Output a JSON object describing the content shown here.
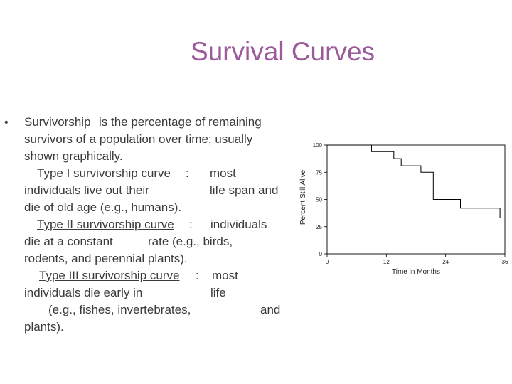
{
  "slide": {
    "title": "Survival Curves",
    "bullet": "•",
    "paragraph": {
      "lines": [
        [
          {
            "t": "Survivorship",
            "u": true,
            "x": 0
          },
          {
            "t": " is the percentage of remaining",
            "u": false,
            "x": 105
          }
        ],
        [
          {
            "t": "survivors of a population over time; usually",
            "u": false,
            "x": 0
          }
        ],
        [
          {
            "t": "shown graphically.",
            "u": false,
            "x": 0
          }
        ],
        [
          {
            "t": "Type I survivorship curve",
            "u": true,
            "x": 18
          },
          {
            "t": ":",
            "u": false,
            "x": 227
          },
          {
            "t": "most",
            "u": false,
            "x": 261
          }
        ],
        [
          {
            "t": "individuals live out their",
            "u": false,
            "x": 0
          },
          {
            "t": "life span and",
            "u": false,
            "x": 261
          }
        ],
        [
          {
            "t": "die of old age (e.g., humans).",
            "u": false,
            "x": 0
          }
        ],
        [
          {
            "t": "Type II survivorship curve",
            "u": true,
            "x": 18
          },
          {
            "t": ":",
            "u": false,
            "x": 232
          },
          {
            "t": "individuals",
            "u": false,
            "x": 262
          }
        ],
        [
          {
            "t": "die at a constant",
            "u": false,
            "x": 0
          },
          {
            "t": "rate (e.g., birds,",
            "u": false,
            "x": 174
          }
        ],
        [
          {
            "t": "rodents, and  perennial plants).",
            "u": false,
            "x": 0
          }
        ],
        [
          {
            "t": "Type III survivorship curve",
            "u": true,
            "x": 21
          },
          {
            "t": ":",
            "u": false,
            "x": 241
          },
          {
            "t": "most",
            "u": false,
            "x": 264
          }
        ],
        [
          {
            "t": "individuals die early in",
            "u": false,
            "x": 0
          },
          {
            "t": "life",
            "u": false,
            "x": 262
          }
        ],
        [
          {
            "t": "(e.g., fishes, invertebrates,",
            "u": false,
            "x": 34
          },
          {
            "t": "and",
            "u": false,
            "x": 332
          }
        ],
        [
          {
            "t": "plants).",
            "u": false,
            "x": 0
          }
        ]
      ]
    }
  },
  "chart_data": {
    "type": "line",
    "title": "",
    "xlabel": "Time in Months",
    "ylabel": "Percent Still Alive",
    "xlim": [
      0,
      36
    ],
    "ylim": [
      0,
      100
    ],
    "xticks": [
      0,
      12,
      24,
      36
    ],
    "yticks": [
      0,
      25,
      50,
      75,
      100
    ],
    "step": true,
    "series": [
      {
        "x": [
          0,
          9,
          9,
          13.5,
          13.5,
          15,
          15,
          19,
          19,
          21.5,
          21.5,
          27,
          27,
          35,
          35
        ],
        "y": [
          100,
          100,
          94,
          94,
          87.5,
          87.5,
          81,
          81,
          75,
          75,
          50,
          50,
          42,
          42,
          33
        ]
      }
    ],
    "colors": {
      "line": "#000000",
      "title": "#9b5b9a"
    }
  }
}
